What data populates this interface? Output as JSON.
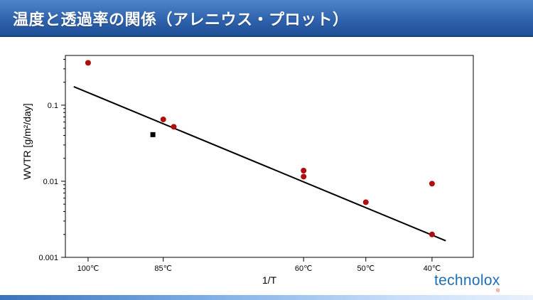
{
  "slide": {
    "title": "温度と透過率の関係（アレニウス・プロット）",
    "logo_text": "technolox",
    "logo_mark": "®"
  },
  "colors": {
    "header": "#2f63ad",
    "data_point": "#b00e0e",
    "outlier_point": "#000000",
    "fit_line": "#000000",
    "logo": "#1d6db5"
  },
  "chart_data": {
    "type": "scatter",
    "title": "",
    "xlabel": "1/T",
    "ylabel": "WVTR [g/m²/day]",
    "y_scale": "log",
    "ylim": [
      0.001,
      0.45
    ],
    "y_ticks": [
      {
        "value": 0.001,
        "label": "0.001"
      },
      {
        "value": 0.01,
        "label": "0.01"
      },
      {
        "value": 0.1,
        "label": "0.1"
      }
    ],
    "x_unit": "1/T (1/K)",
    "xlim": [
      0.002646,
      0.003255
    ],
    "x_ticks": [
      {
        "celsius": 100,
        "label": "100℃"
      },
      {
        "celsius": 85,
        "label": "85℃"
      },
      {
        "celsius": 60,
        "label": "60℃"
      },
      {
        "celsius": 50,
        "label": "50℃"
      },
      {
        "celsius": 40,
        "label": "40℃"
      }
    ],
    "series": [
      {
        "marker": "circle",
        "color": "#b00e0e",
        "points": [
          {
            "celsius": 100,
            "y": 0.36
          },
          {
            "celsius": 85,
            "y": 0.065
          },
          {
            "celsius": 83,
            "y": 0.052
          },
          {
            "celsius": 60,
            "y": 0.0138
          },
          {
            "celsius": 60,
            "y": 0.0115
          },
          {
            "celsius": 50,
            "y": 0.0053
          },
          {
            "celsius": 40,
            "y": 0.0093
          },
          {
            "celsius": 40,
            "y": 0.002
          }
        ]
      },
      {
        "marker": "square",
        "color": "#000000",
        "points": [
          {
            "celsius": 87,
            "y": 0.041
          }
        ]
      }
    ],
    "fit_line": {
      "color": "#000000",
      "points": [
        {
          "celsius": 103,
          "y": 0.175
        },
        {
          "celsius": 38,
          "y": 0.00165
        }
      ]
    }
  }
}
